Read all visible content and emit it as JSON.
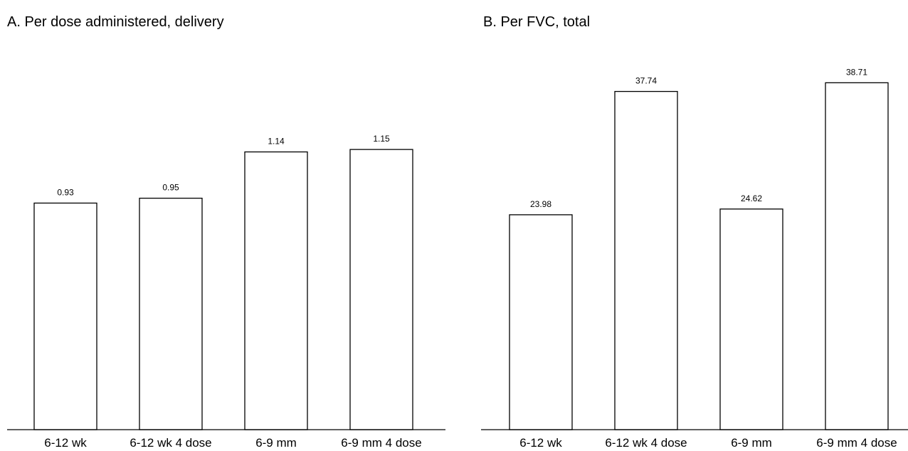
{
  "chart_data": [
    {
      "type": "bar",
      "title": "A. Per dose administered, delivery",
      "categories": [
        "6-12 wk",
        "6-12 wk 4 dose",
        "6-9 mm",
        "6-9 mm 4 dose"
      ],
      "values": [
        0.93,
        0.95,
        1.14,
        1.15
      ],
      "value_labels": [
        "0.93",
        "0.95",
        "1.14",
        "1.15"
      ],
      "xlabel": "",
      "ylabel": "",
      "ylim": [
        0,
        1.6
      ],
      "grid": false,
      "bar_fill": "#ffffff",
      "bar_stroke": "#000000"
    },
    {
      "type": "bar",
      "title": "B. Per FVC, total",
      "categories": [
        "6-12 wk",
        "6-12 wk 4 dose",
        "6-9 mm",
        "6-9 mm 4 dose"
      ],
      "values": [
        23.98,
        37.74,
        24.62,
        38.71
      ],
      "value_labels": [
        "23.98",
        "37.74",
        "24.62",
        "38.71"
      ],
      "xlabel": "",
      "ylabel": "",
      "ylim": [
        0,
        43.5
      ],
      "grid": false,
      "bar_fill": "#ffffff",
      "bar_stroke": "#000000"
    }
  ]
}
